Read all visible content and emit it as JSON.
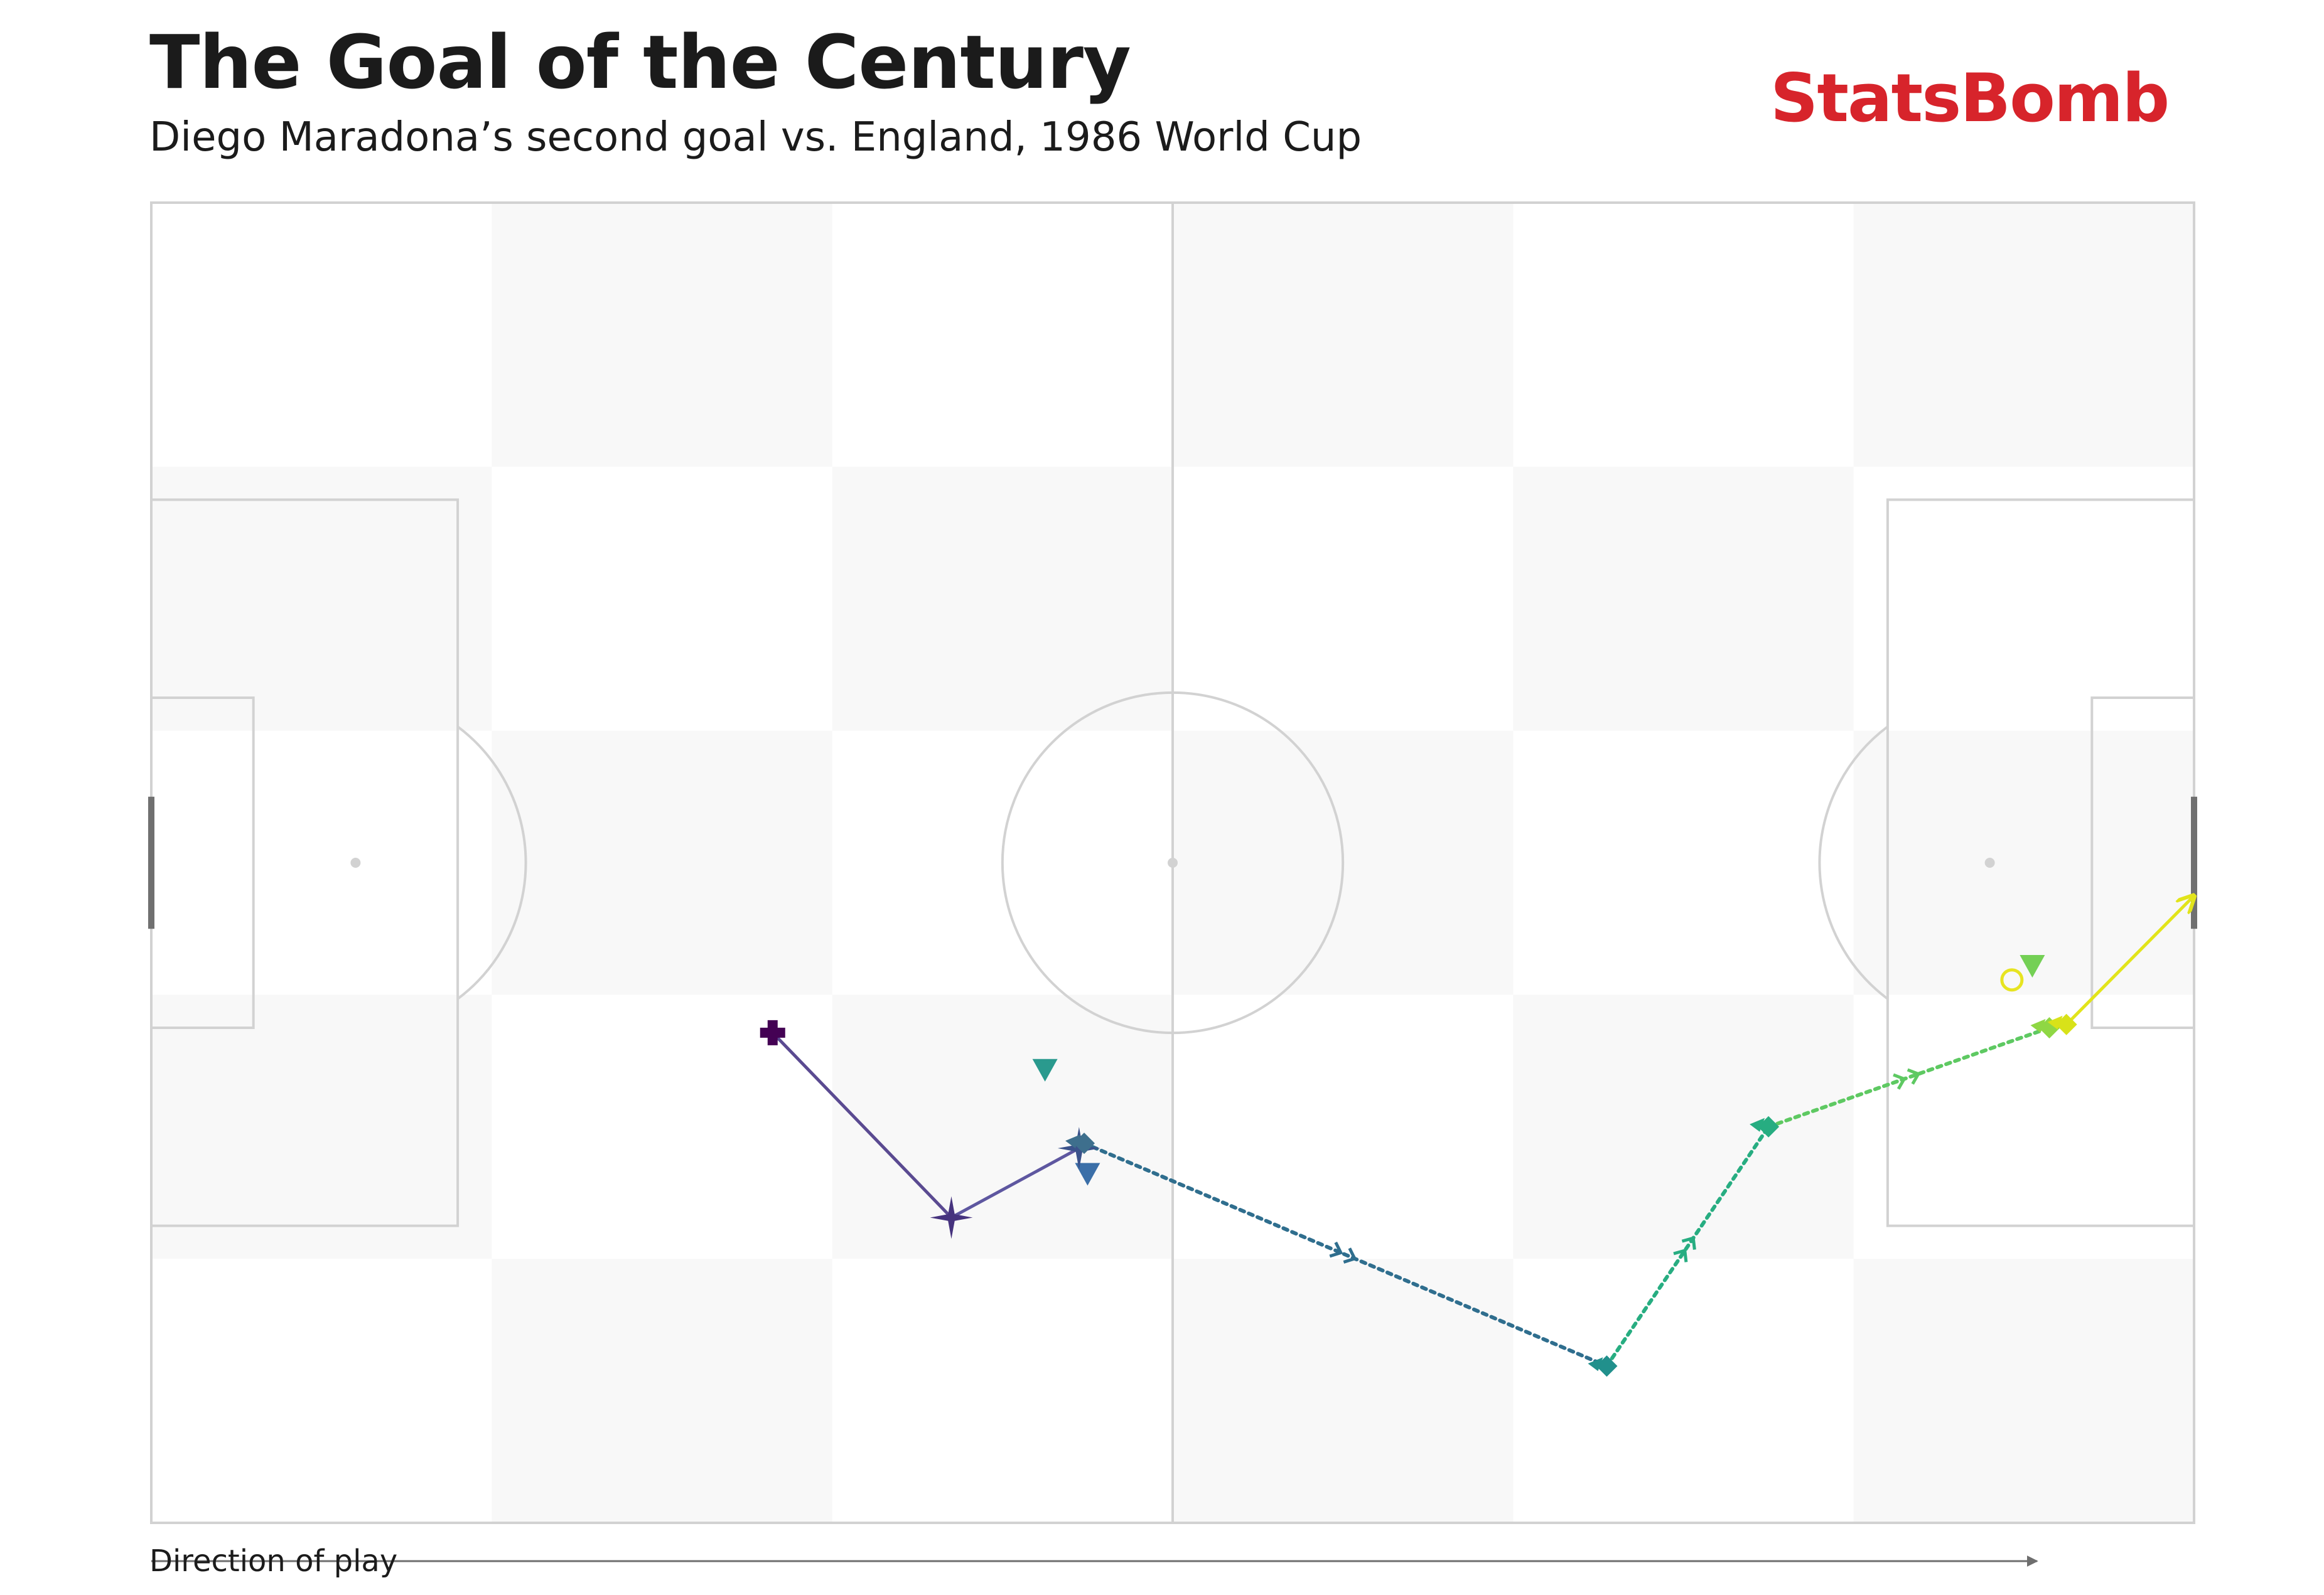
{
  "header": {
    "title": "The Goal of the Century",
    "subtitle": "Diego Maradona’s second goal vs. England, 1986 World Cup",
    "brand": "StatsBomb"
  },
  "footer": {
    "direction_label": "Direction of play"
  },
  "colors": {
    "brand": "#d7242b",
    "pitch_line": "#d2d2d2",
    "pitch_stripe": "#f8f8f8",
    "goal": "#707070",
    "arrow": "#6e6e6e"
  },
  "chart_data": {
    "type": "scatter",
    "pitch": {
      "length": 120,
      "width": 80,
      "orientation": "horizontal",
      "direction_of_play": "left-to-right"
    },
    "events": [
      {
        "x": 36.5,
        "y": 50.3,
        "type": "start",
        "marker": "plus",
        "color": "#440154"
      },
      {
        "x": 47.0,
        "y": 61.5,
        "type": "carry",
        "marker": "star",
        "color": "#46337e"
      },
      {
        "x": 54.5,
        "y": 57.3,
        "type": "carry",
        "marker": "star",
        "color": "#3b528b"
      },
      {
        "x": 54.8,
        "y": 57.0,
        "type": "carry",
        "marker": "diamond",
        "color": "#3e6f8d"
      },
      {
        "x": 85.5,
        "y": 70.5,
        "type": "carry",
        "marker": "diamond",
        "color": "#21908c"
      },
      {
        "x": 95.0,
        "y": 56.0,
        "type": "carry",
        "marker": "diamond",
        "color": "#27ad81"
      },
      {
        "x": 111.5,
        "y": 50.0,
        "type": "carry",
        "marker": "diamond",
        "color": "#8fd744"
      },
      {
        "x": 112.5,
        "y": 49.8,
        "type": "carry",
        "marker": "diamond",
        "color": "#d8e219"
      },
      {
        "x": 120.0,
        "y": 42.0,
        "type": "shot",
        "marker": "arrow",
        "color": "#fde725"
      }
    ],
    "paths": [
      {
        "from": 0,
        "to": 1,
        "style": "solid",
        "color": "#5a4a91"
      },
      {
        "from": 1,
        "to": 2,
        "style": "solid",
        "color": "#5e57a0"
      },
      {
        "from": 3,
        "to": 4,
        "style": "dotted",
        "color": "#2f6e8e"
      },
      {
        "from": 4,
        "to": 5,
        "style": "dotted",
        "color": "#27ad81"
      },
      {
        "from": 5,
        "to": 6,
        "style": "dotted",
        "color": "#5ec962"
      },
      {
        "from": 7,
        "to": 8,
        "style": "solid",
        "color": "#e2e41b"
      }
    ],
    "defenders": [
      {
        "x": 52.5,
        "y": 52.5,
        "color": "#2a9a8e"
      },
      {
        "x": 55.0,
        "y": 58.8,
        "color": "#3b6fa8"
      },
      {
        "x": 110.5,
        "y": 46.2,
        "color": "#74d055"
      }
    ],
    "goalkeeper_open_circle": {
      "x": 109.3,
      "y": 47.1,
      "color": "#e7e421"
    }
  }
}
